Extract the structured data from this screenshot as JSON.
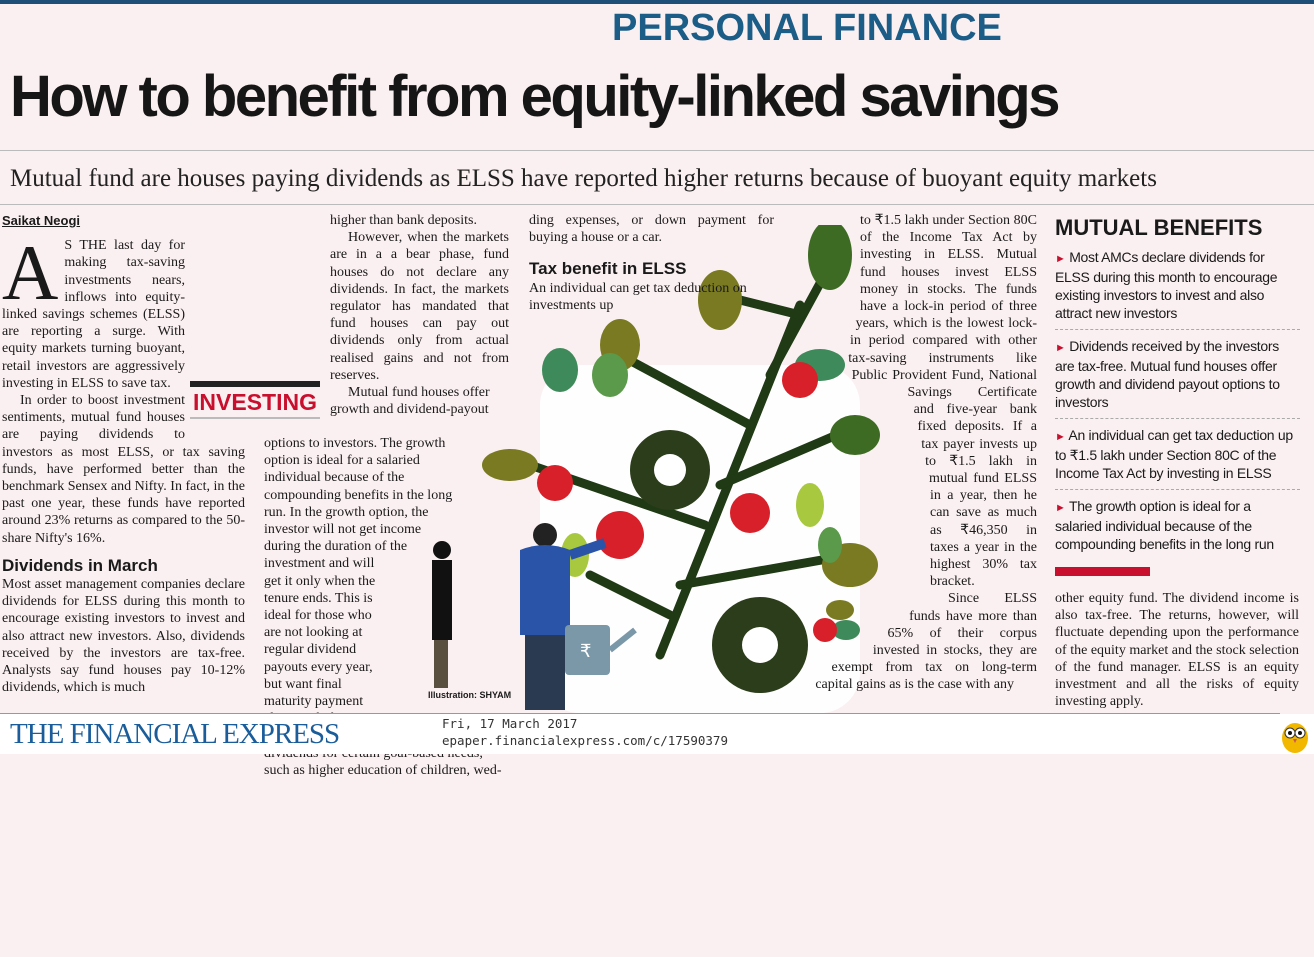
{
  "section": "PERSONAL FINANCE",
  "headline": "How to benefit from equity-linked savings",
  "subtitle": "Mutual fund are houses paying dividends as ELSS have reported higher returns because of buoyant equity markets",
  "byline": "Saikat Neogi",
  "kicker": "INVESTING",
  "col1": {
    "dropcap": "A",
    "p1": "S THE last day for making tax-saving investments nears, inflows into equity-linked savings schemes (ELSS) are reporting a surge. With equity markets turning buoyant, retail investors are aggressively investing in ELSS to save tax.",
    "p2": "In order to boost investment sentiments, mutual fund houses are paying dividends to investors as most ELSS, or tax saving funds, have performed better than the benchmark Sensex and Nifty. In fact, in the past one year, these funds have reported around 23% returns as compared to the 50-share Nifty's 16%.",
    "subhead": "Dividends in March",
    "p3": "Most asset management companies declare dividends for ELSS during this month to encourage existing investors to invest and also attract new investors. Also, dividends received by the investors are tax-free. Analysts say fund houses pay 10-12% dividends, which is much"
  },
  "col2": {
    "p1": "higher than bank deposits.",
    "p2": "However, when the markets are in a a bear phase, fund houses do not declare any dividends. In fact, the markets regulator has mandated that fund houses can pay out dividends only from actual realised gains and not from reserves.",
    "p3": "Mutual fund houses offer growth and dividend-payout options to investors. The growth option is ideal for a salaried individual because of the compounding benefits in the long run. In the growth option, the investor will not get income during the duration of the investment and will get it only when the tenure ends. This is ideal for those who are not looking at regular dividend payouts every year, but want final maturity payment along with the accumulated dividends for certain goal-based needs, such as higher education of children, wed-"
  },
  "col3": {
    "p1": "ding expenses, or down payment for buying a house or a car.",
    "subhead": "Tax benefit in ELSS",
    "p2": "An individual can get tax deduction on investments up"
  },
  "col4": {
    "p1": "to ₹1.5 lakh under Section 80C of the Income Tax Act by investing in ELSS. Mutual fund houses invest ELSS money in stocks. The funds have a lock-in period of three years, which is the lowest lock-in period compared with other tax-saving instruments like Public Provident Fund, National Savings Certificate and five-year bank fixed deposits. If a tax payer invests up to ₹1.5 lakh in mutual fund ELSS in a year, then he can save as much as ₹46,350 in taxes a year in the highest 30% tax bracket.",
    "p2": "Since ELSS funds have more than 65% of their corpus invested in stocks, they are exempt from tax on long-term capital gains as is the case with any"
  },
  "sidebar": {
    "title": "MUTUAL BENEFITS",
    "bullets": [
      "Most AMCs declare dividends for ELSS during this month to encourage existing investors to invest and also attract new investors",
      "Dividends received by the investors are tax-free. Mutual fund houses offer growth and dividend payout options to investors",
      "An individual can get tax deduction up to ₹1.5 lakh under Section 80C of the Income Tax Act by investing in ELSS",
      "The growth option is ideal for a salaried individual because of the compounding benefits in the long run"
    ]
  },
  "col5": {
    "p1": "other equity fund. The dividend income is also tax-free. The returns, however, will fluctuate depending upon the performance of the equity market and the stock selection of the fund manager. ELSS is an equity investment and all the risks of equity investing apply."
  },
  "illustration_credit": "Illustration: SHYAM",
  "illustration": {
    "symbol": "₹"
  },
  "footer": {
    "logo": "THE FINANCIAL EXPRESS",
    "date": "Fri, 17 March 2017",
    "url": "epaper.financialexpress.com/c/17590379"
  },
  "colors": {
    "brand_blue": "#1b5d86",
    "accent_red": "#c8102e",
    "background": "#fbf0f1"
  }
}
